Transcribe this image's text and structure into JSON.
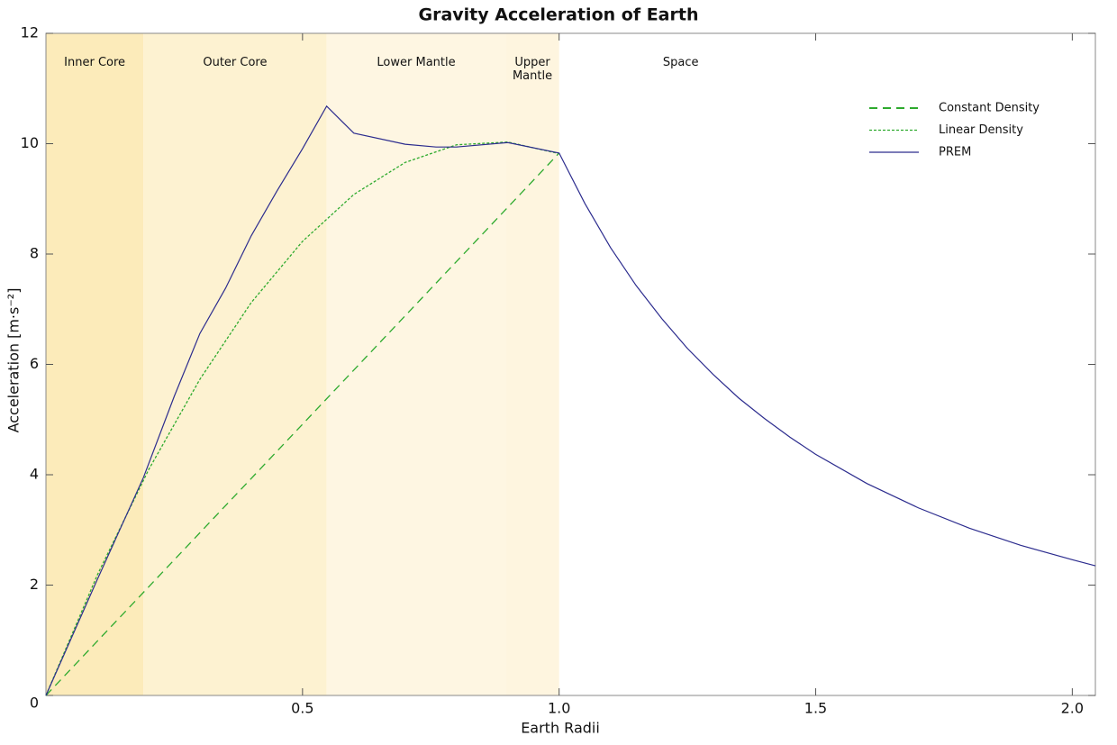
{
  "chart_data": {
    "type": "line",
    "title": "Gravity Acceleration of Earth",
    "x_label": "Earth Radii",
    "y_label": "Acceleration [m·s⁻²]",
    "xlim": [
      0,
      2.045
    ],
    "ylim": [
      0,
      12
    ],
    "xticks": [
      0.5,
      {
        "value": 1,
        "label": "1.0"
      },
      1.5,
      {
        "value": 2,
        "label": "2.0"
      }
    ],
    "yticks": [
      0,
      2,
      4,
      6,
      8,
      10,
      12
    ],
    "legend": "upper right",
    "regions": [
      {
        "name": "Inner Core",
        "start": 0,
        "color": "#fcebba"
      },
      {
        "name": "Outer Core",
        "start": 0.19,
        "color": "#fdf2d1"
      },
      {
        "name": "Lower Mantle",
        "start": 0.547,
        "color": "#fef6e2"
      },
      {
        "name": "Upper Mantle",
        "start": 0.896,
        "color": "#fef5df"
      },
      {
        "name": "Space",
        "start": 1.0
      }
    ],
    "series": [
      {
        "name": "Constant Density",
        "color": "#2eaa2e",
        "style": "dashed",
        "x": [
          0,
          1.0
        ],
        "values": [
          0,
          9.83
        ]
      },
      {
        "name": "Linear Density",
        "color": "#2eaa2e",
        "style": "dotted",
        "x": [
          0,
          0.1,
          0.2,
          0.3,
          0.4,
          0.5,
          0.6,
          0.7,
          0.8,
          0.9,
          1.0
        ],
        "values": [
          0,
          2.18,
          4.09,
          5.73,
          7.12,
          8.23,
          9.08,
          9.66,
          9.98,
          10.03,
          9.82
        ]
      },
      {
        "name": "PREM",
        "color": "#2c2c8e",
        "style": "solid",
        "x": [
          0,
          0.1,
          0.19,
          0.25,
          0.3,
          0.35,
          0.4,
          0.45,
          0.5,
          0.547,
          0.6,
          0.7,
          0.76,
          0.8,
          0.9,
          1.0,
          1.05,
          1.1,
          1.15,
          1.2,
          1.25,
          1.3,
          1.35,
          1.4,
          1.45,
          1.5,
          1.6,
          1.7,
          1.8,
          1.9,
          2.0,
          2.045
        ],
        "values": [
          0,
          2.1,
          3.95,
          5.42,
          6.56,
          7.38,
          8.33,
          9.14,
          9.91,
          10.68,
          10.19,
          9.99,
          9.94,
          9.94,
          10.02,
          9.83,
          8.92,
          8.12,
          7.43,
          6.83,
          6.29,
          5.82,
          5.39,
          5.02,
          4.68,
          4.37,
          3.84,
          3.4,
          3.03,
          2.72,
          2.46,
          2.35
        ]
      }
    ]
  }
}
